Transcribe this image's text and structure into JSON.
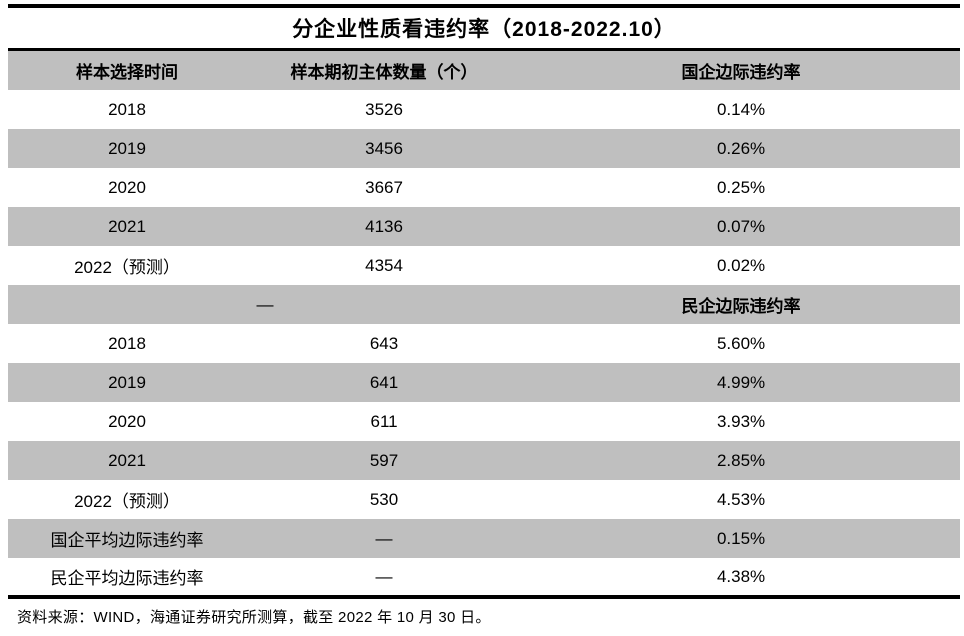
{
  "chart_data": {
    "type": "table",
    "title": "分企业性质看违约率（2018-2022.10）",
    "columns": [
      "样本选择时间",
      "样本期初主体数量（个）",
      "国企边际违约率"
    ],
    "soe_rows": [
      [
        "2018",
        "3526",
        "0.14%"
      ],
      [
        "2019",
        "3456",
        "0.26%"
      ],
      [
        "2020",
        "3667",
        "0.25%"
      ],
      [
        "2021",
        "4136",
        "0.07%"
      ],
      [
        "2022（预测）",
        "4354",
        "0.02%"
      ]
    ],
    "divider_row": {
      "dash": "—",
      "label": "民企边际违约率"
    },
    "poe_rows": [
      [
        "2018",
        "643",
        "5.60%"
      ],
      [
        "2019",
        "641",
        "4.99%"
      ],
      [
        "2020",
        "611",
        "3.93%"
      ],
      [
        "2021",
        "597",
        "2.85%"
      ],
      [
        "2022（预测）",
        "530",
        "4.53%"
      ]
    ],
    "summary_rows": [
      [
        "国企平均边际违约率",
        "—",
        "0.15%"
      ],
      [
        "民企平均边际违约率",
        "—",
        "4.38%"
      ]
    ],
    "layout_hints": {
      "row_striping": "alternating white and gray bands",
      "rules": "thick black rule above title, below title, and below last data row",
      "alignment": "all cells centered"
    }
  },
  "source_note": "资料来源：WIND，海通证券研究所测算，截至 2022 年 10 月 30 日。",
  "colors": {
    "row_band": "#bfbfbf",
    "rule": "#000000",
    "background": "#ffffff",
    "text": "#000000"
  }
}
